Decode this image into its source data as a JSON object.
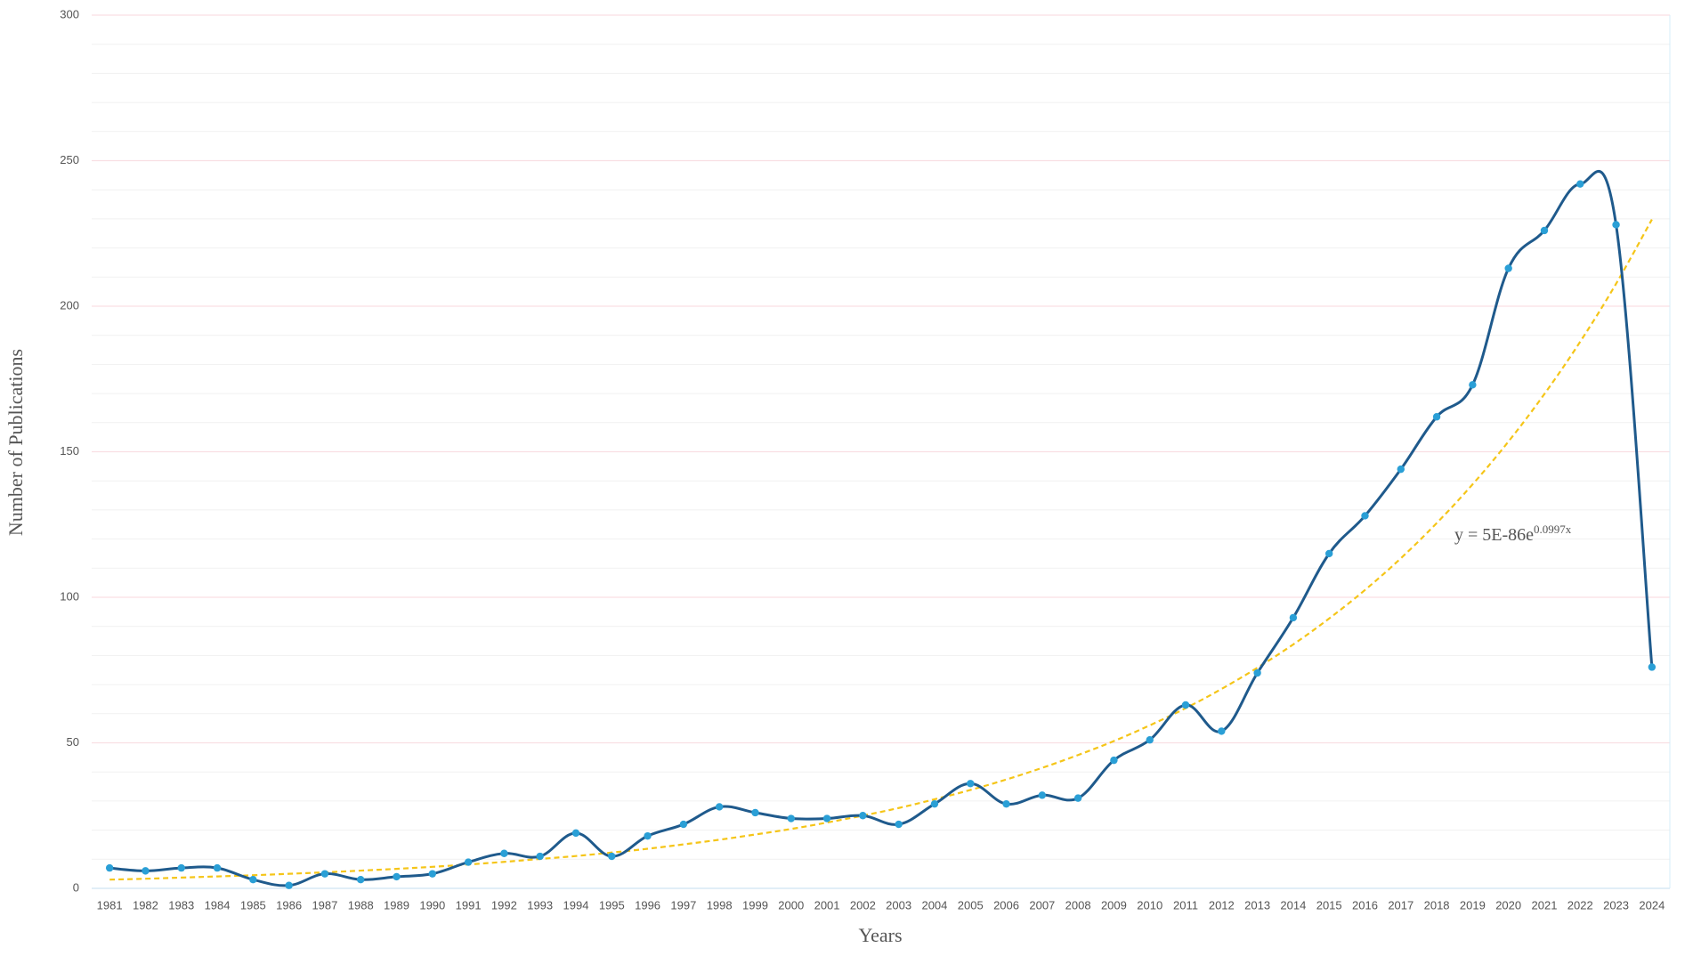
{
  "chart_data": {
    "type": "line",
    "x_label": "Years",
    "y_label": "Number of Publications",
    "categories": [
      "1981",
      "1982",
      "1983",
      "1984",
      "1985",
      "1986",
      "1987",
      "1988",
      "1989",
      "1990",
      "1991",
      "1992",
      "1993",
      "1994",
      "1995",
      "1996",
      "1997",
      "1998",
      "1999",
      "2000",
      "2001",
      "2002",
      "2003",
      "2004",
      "2005",
      "2006",
      "2007",
      "2008",
      "2009",
      "2010",
      "2011",
      "2012",
      "2013",
      "2014",
      "2015",
      "2016",
      "2017",
      "2018",
      "2019",
      "2020",
      "2021",
      "2022",
      "2023",
      "2024"
    ],
    "series": [
      {
        "color": "#1f5a8c",
        "marker_color": "#2a9fd6",
        "values": [
          7,
          6,
          7,
          7,
          3,
          1,
          5,
          3,
          4,
          5,
          9,
          12,
          11,
          19,
          11,
          18,
          22,
          28,
          26,
          24,
          24,
          25,
          22,
          29,
          36,
          29,
          32,
          31,
          44,
          51,
          63,
          54,
          74,
          93,
          115,
          128,
          144,
          162,
          173,
          213,
          226,
          242,
          228,
          76
        ]
      }
    ],
    "trendline": {
      "color": "#f5c518",
      "values": [
        3,
        3.3,
        3.7,
        4.1,
        4.5,
        5,
        5.5,
        6.1,
        6.7,
        7.4,
        8.2,
        9.1,
        10.1,
        11.1,
        12.3,
        13.6,
        15.1,
        16.7,
        18.5,
        20.4,
        22.6,
        25,
        27.6,
        30.6,
        33.8,
        37.4,
        41.4,
        45.8,
        50.6,
        56,
        61.9,
        68.5,
        75.8,
        83.8,
        92.7,
        102.5,
        113.4,
        125.5,
        138.8,
        153.5,
        169.8,
        187.8,
        207.7,
        229.8
      ]
    },
    "annotation": {
      "text": "y = 5E-86e",
      "superscript": "0.0997x"
    },
    "ylim": [
      0,
      300
    ],
    "yticks": [
      0,
      50,
      100,
      150,
      200,
      250,
      300
    ],
    "grid": true
  }
}
